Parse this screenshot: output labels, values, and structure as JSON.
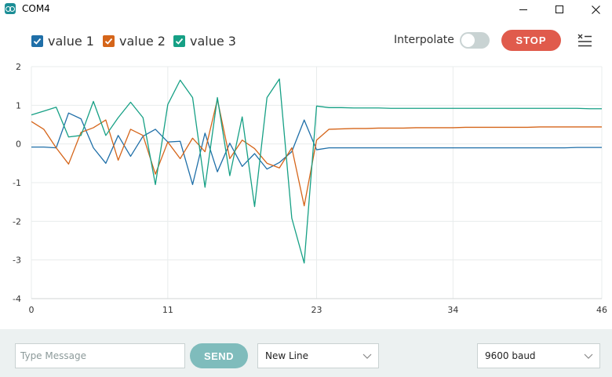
{
  "window": {
    "title": "COM4"
  },
  "legend": [
    {
      "label": "value 1",
      "color": "#1f6fa8",
      "checked": true
    },
    {
      "label": "value 2",
      "color": "#d5651a",
      "checked": true
    },
    {
      "label": "value 3",
      "color": "#16a085",
      "checked": true
    }
  ],
  "toolbar": {
    "interpolate_label": "Interpolate",
    "interpolate_on": false,
    "stop_label": "STOP"
  },
  "footer": {
    "message_placeholder": "Type Message",
    "send_label": "SEND",
    "line_ending": "New Line",
    "baud": "9600 baud"
  },
  "chart_data": {
    "type": "line",
    "xlim": [
      0,
      46
    ],
    "ylim": [
      -4,
      2
    ],
    "xticks": [
      0,
      11,
      23,
      34,
      46
    ],
    "yticks": [
      2,
      1,
      0,
      -1,
      -2,
      -3,
      -4
    ],
    "grid": true,
    "series": [
      {
        "color": "#1f6fa8",
        "values": [
          -0.08,
          -0.08,
          -0.1,
          0.8,
          0.65,
          -0.1,
          -0.5,
          0.22,
          -0.32,
          0.2,
          0.38,
          0.05,
          0.07,
          -1.05,
          0.28,
          -0.72,
          0.02,
          -0.58,
          -0.25,
          -0.65,
          -0.48,
          -0.2,
          0.62,
          -0.15,
          -0.1,
          -0.1,
          -0.1,
          -0.1,
          -0.1,
          -0.1,
          -0.1,
          -0.1,
          -0.1,
          -0.1,
          -0.1,
          -0.1,
          -0.1,
          -0.1,
          -0.1,
          -0.1,
          -0.1,
          -0.1,
          -0.1,
          -0.1,
          -0.09,
          -0.09,
          -0.09
        ]
      },
      {
        "color": "#d5651a",
        "values": [
          0.58,
          0.38,
          -0.1,
          -0.52,
          0.3,
          0.42,
          0.62,
          -0.42,
          0.38,
          0.22,
          -0.78,
          0.05,
          -0.38,
          0.15,
          -0.2,
          1.15,
          -0.38,
          0.1,
          -0.12,
          -0.5,
          -0.62,
          -0.1,
          -1.6,
          0.1,
          0.38,
          0.39,
          0.4,
          0.4,
          0.41,
          0.41,
          0.41,
          0.42,
          0.42,
          0.42,
          0.42,
          0.43,
          0.43,
          0.43,
          0.43,
          0.43,
          0.43,
          0.44,
          0.44,
          0.44,
          0.44,
          0.44,
          0.44
        ]
      },
      {
        "color": "#16a085",
        "values": [
          0.75,
          0.85,
          0.95,
          0.18,
          0.22,
          1.1,
          0.22,
          0.68,
          1.08,
          0.68,
          -1.05,
          1.02,
          1.65,
          1.2,
          -1.12,
          1.2,
          -0.82,
          0.7,
          -1.62,
          1.2,
          1.68,
          -1.92,
          -3.08,
          0.98,
          0.94,
          0.94,
          0.93,
          0.93,
          0.93,
          0.92,
          0.92,
          0.92,
          0.92,
          0.92,
          0.92,
          0.92,
          0.92,
          0.92,
          0.92,
          0.92,
          0.92,
          0.92,
          0.92,
          0.92,
          0.92,
          0.91,
          0.91
        ]
      }
    ]
  }
}
